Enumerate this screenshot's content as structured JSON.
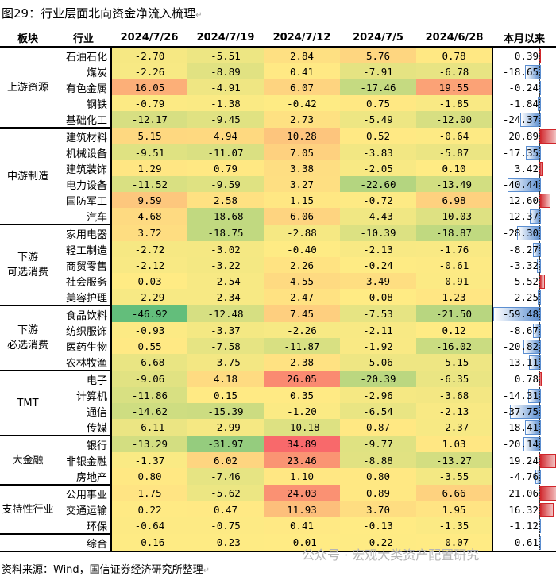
{
  "title": "图29：行业层面北向资金净流入梳理",
  "headers": [
    "板块",
    "行业",
    "2024/7/26",
    "2024/7/19",
    "2024/7/12",
    "2024/7/5",
    "2024/6/28",
    "本月以来"
  ],
  "colors": {
    "low": "#63be7b",
    "mid": "#ffeb84",
    "high": "#f8696b",
    "bar_neg": "#5b8ed0",
    "bar_pos": "#d0262b"
  },
  "groups": [
    {
      "name": "上游资源",
      "rows": [
        [
          "石油石化",
          [
            -2.7,
            -5.51,
            2.84,
            5.76,
            0.78
          ],
          0.39
        ],
        [
          "煤炭",
          [
            -2.26,
            -8.89,
            0.41,
            -7.91,
            -6.78
          ],
          -18.65
        ],
        [
          "有色金属",
          [
            16.05,
            -4.91,
            6.07,
            -17.46,
            19.55
          ],
          -0.24
        ],
        [
          "钢铁",
          [
            -0.79,
            -1.38,
            -0.42,
            0.75,
            -1.85
          ],
          -1.84
        ],
        [
          "基础化工",
          [
            -12.17,
            -9.45,
            2.73,
            -5.49,
            -12.0
          ],
          -24.37
        ]
      ]
    },
    {
      "name": "中游制造",
      "rows": [
        [
          "建筑材料",
          [
            5.15,
            4.94,
            10.28,
            0.52,
            -0.64
          ],
          20.89
        ],
        [
          "机械设备",
          [
            -9.51,
            -11.07,
            7.05,
            -3.83,
            -5.87
          ],
          -17.35
        ],
        [
          "建筑装饰",
          [
            1.29,
            0.79,
            3.38,
            -2.05,
            0.1
          ],
          3.42
        ],
        [
          "电力设备",
          [
            -11.52,
            -9.59,
            3.27,
            -22.6,
            -13.49
          ],
          -40.44
        ],
        [
          "国防军工",
          [
            9.59,
            2.58,
            1.15,
            -0.72,
            6.98
          ],
          12.6
        ],
        [
          "汽车",
          [
            4.68,
            -18.68,
            6.06,
            -4.43,
            -10.03
          ],
          -12.37
        ]
      ]
    },
    {
      "name": "下游\n可选消费",
      "rows": [
        [
          "家用电器",
          [
            3.72,
            -18.75,
            -2.88,
            -10.39,
            -18.87
          ],
          -28.3
        ],
        [
          "轻工制造",
          [
            -2.72,
            -3.02,
            -0.4,
            -2.13,
            -1.76
          ],
          -8.27
        ],
        [
          "商贸零售",
          [
            -2.12,
            -3.22,
            2.26,
            -0.24,
            -0.61
          ],
          -3.32
        ],
        [
          "社会服务",
          [
            0.03,
            -2.54,
            4.55,
            3.49,
            -0.91
          ],
          5.52
        ],
        [
          "美容护理",
          [
            -2.29,
            -2.34,
            2.47,
            -0.08,
            1.23
          ],
          -2.25
        ]
      ]
    },
    {
      "name": "下游\n必选消费",
      "rows": [
        [
          "食品饮料",
          [
            -46.92,
            -12.48,
            7.45,
            -7.53,
            -21.5
          ],
          -59.48
        ],
        [
          "纺织服饰",
          [
            -0.93,
            -3.37,
            -2.26,
            -2.11,
            0.12
          ],
          -8.67
        ],
        [
          "医药生物",
          [
            0.55,
            -7.58,
            -11.87,
            -1.92,
            -16.02
          ],
          -20.82
        ],
        [
          "农林牧渔",
          [
            -6.68,
            -3.75,
            2.38,
            -5.06,
            -5.15
          ],
          -13.11
        ]
      ]
    },
    {
      "name": "TMT",
      "rows": [
        [
          "电子",
          [
            -9.06,
            4.18,
            26.05,
            -20.39,
            -6.35
          ],
          0.78
        ],
        [
          "计算机",
          [
            -11.86,
            0.15,
            0.35,
            -2.96,
            -3.68
          ],
          -14.31
        ],
        [
          "通信",
          [
            -14.62,
            -15.39,
            -1.2,
            -6.54,
            -2.13
          ],
          -37.75
        ],
        [
          "传媒",
          [
            -6.11,
            -2.99,
            -10.18,
            0.87,
            -2.37
          ],
          -18.41
        ]
      ]
    },
    {
      "name": "大金融",
      "rows": [
        [
          "银行",
          [
            -13.29,
            -31.97,
            34.89,
            -9.77,
            1.03
          ],
          -20.14
        ],
        [
          "非银金融",
          [
            -1.37,
            6.02,
            23.46,
            -8.88,
            -13.27
          ],
          19.24
        ],
        [
          "房地产",
          [
            0.8,
            -7.46,
            1.1,
            0.8,
            -3.55
          ],
          -4.76
        ]
      ]
    },
    {
      "name": "支持性行业",
      "rows": [
        [
          "公用事业",
          [
            1.75,
            -5.62,
            24.03,
            0.89,
            6.66
          ],
          21.06
        ],
        [
          "交通运输",
          [
            0.22,
            0.47,
            11.93,
            3.7,
            1.95
          ],
          16.32
        ],
        [
          "环保",
          [
            -0.64,
            -0.75,
            0.41,
            -0.13,
            -1.35
          ],
          -1.12
        ]
      ]
    },
    {
      "name": "",
      "rows": [
        [
          "综合",
          [
            -0.16,
            -0.23,
            -0.01,
            -0.22,
            -0.07
          ],
          -0.61
        ]
      ]
    }
  ],
  "watermark": "公众号 · 宏观大类资产配置研究",
  "source": "资料来源：Wind，国信证券经济研究所整理"
}
